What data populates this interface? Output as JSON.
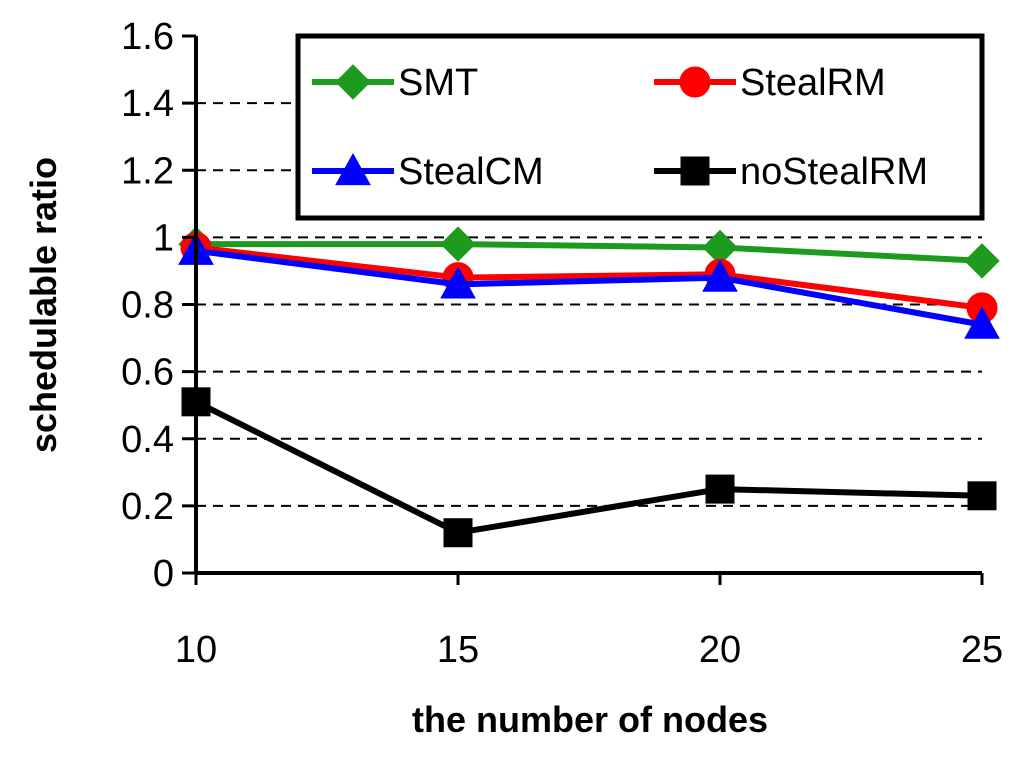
{
  "chart_data": {
    "type": "line",
    "title": "",
    "xlabel": "the number of nodes",
    "ylabel": "schedulable ratio",
    "x": [
      10,
      15,
      20,
      25
    ],
    "x_tick_labels": [
      "10",
      "15",
      "20",
      "25"
    ],
    "y_tick_labels": [
      "0",
      "0.2",
      "0.4",
      "0.6",
      "0.8",
      "1",
      "1.2",
      "1.4",
      "1.6"
    ],
    "ylim": [
      0,
      1.6
    ],
    "grid": "horizontal dashed",
    "legend_position": "top-right",
    "series": [
      {
        "name": "SMT",
        "color": "#1e9b1e",
        "marker": "diamond",
        "values": [
          0.98,
          0.98,
          0.97,
          0.93
        ]
      },
      {
        "name": "StealRM",
        "color": "#ff0000",
        "marker": "circle",
        "values": [
          0.97,
          0.88,
          0.89,
          0.79
        ]
      },
      {
        "name": "StealCM",
        "color": "#0000ff",
        "marker": "triangle",
        "values": [
          0.96,
          0.86,
          0.88,
          0.74
        ]
      },
      {
        "name": "noStealRM",
        "color": "#000000",
        "marker": "square",
        "values": [
          0.51,
          0.12,
          0.25,
          0.23
        ]
      }
    ]
  }
}
